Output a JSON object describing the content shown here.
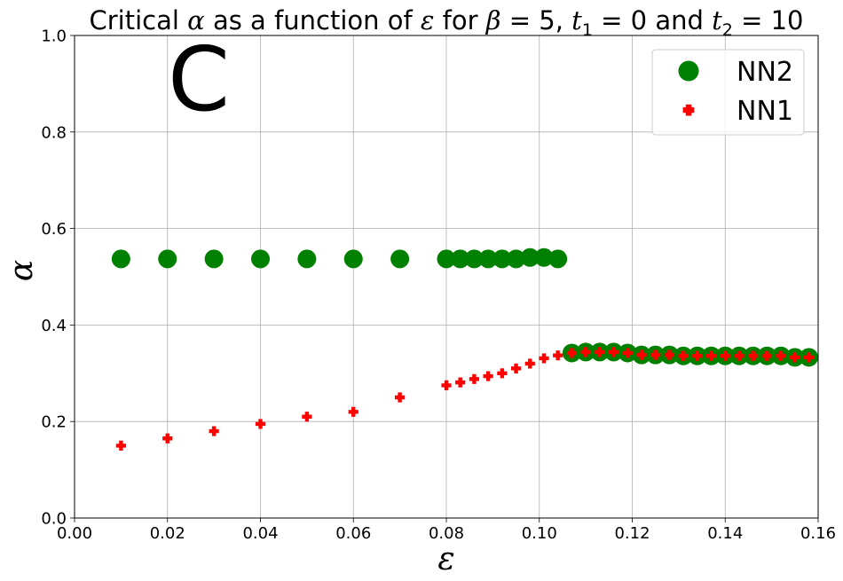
{
  "chart_data": {
    "type": "scatter",
    "title_parts": {
      "p1": "Critical ",
      "alpha": "α",
      "p2": " as a function of ",
      "eps": "ε",
      "p3": " for ",
      "beta": "β",
      "p4": " = 5, ",
      "t1": "t",
      "t1_sub": "1",
      "p5": " = 0 and ",
      "t2": "t",
      "t2_sub": "2",
      "p6": " = 10"
    },
    "xlabel": "ε",
    "ylabel": "α",
    "panel_label": "C",
    "xlim": [
      0,
      0.16
    ],
    "ylim": [
      0,
      1
    ],
    "xticks": [
      "0.00",
      "0.02",
      "0.04",
      "0.06",
      "0.08",
      "0.10",
      "0.12",
      "0.14",
      "0.16"
    ],
    "yticks": [
      "0.0",
      "0.2",
      "0.4",
      "0.6",
      "0.8",
      "1.0"
    ],
    "grid": true,
    "legend_position": "top-right",
    "series": [
      {
        "name": "NN2",
        "marker": "circle",
        "color": "#008000",
        "points": [
          [
            0.01,
            0.537
          ],
          [
            0.02,
            0.537
          ],
          [
            0.03,
            0.537
          ],
          [
            0.04,
            0.537
          ],
          [
            0.05,
            0.537
          ],
          [
            0.06,
            0.537
          ],
          [
            0.07,
            0.537
          ],
          [
            0.08,
            0.537
          ],
          [
            0.083,
            0.537
          ],
          [
            0.086,
            0.537
          ],
          [
            0.089,
            0.537
          ],
          [
            0.092,
            0.537
          ],
          [
            0.095,
            0.537
          ],
          [
            0.098,
            0.54
          ],
          [
            0.101,
            0.54
          ],
          [
            0.104,
            0.537
          ],
          [
            0.107,
            0.342
          ],
          [
            0.11,
            0.344
          ],
          [
            0.113,
            0.344
          ],
          [
            0.116,
            0.344
          ],
          [
            0.119,
            0.342
          ],
          [
            0.122,
            0.338
          ],
          [
            0.125,
            0.338
          ],
          [
            0.128,
            0.338
          ],
          [
            0.131,
            0.336
          ],
          [
            0.134,
            0.336
          ],
          [
            0.137,
            0.336
          ],
          [
            0.14,
            0.336
          ],
          [
            0.143,
            0.336
          ],
          [
            0.146,
            0.336
          ],
          [
            0.149,
            0.336
          ],
          [
            0.152,
            0.336
          ],
          [
            0.155,
            0.333
          ],
          [
            0.158,
            0.333
          ]
        ]
      },
      {
        "name": "NN1",
        "marker": "plus",
        "color": "#ff0000",
        "points": [
          [
            0.01,
            0.15
          ],
          [
            0.02,
            0.165
          ],
          [
            0.03,
            0.18
          ],
          [
            0.04,
            0.195
          ],
          [
            0.05,
            0.21
          ],
          [
            0.06,
            0.22
          ],
          [
            0.07,
            0.25
          ],
          [
            0.08,
            0.275
          ],
          [
            0.083,
            0.281
          ],
          [
            0.086,
            0.288
          ],
          [
            0.089,
            0.294
          ],
          [
            0.092,
            0.3
          ],
          [
            0.095,
            0.31
          ],
          [
            0.098,
            0.32
          ],
          [
            0.101,
            0.331
          ],
          [
            0.104,
            0.337
          ],
          [
            0.107,
            0.342
          ],
          [
            0.11,
            0.344
          ],
          [
            0.113,
            0.344
          ],
          [
            0.116,
            0.344
          ],
          [
            0.119,
            0.342
          ],
          [
            0.122,
            0.338
          ],
          [
            0.125,
            0.338
          ],
          [
            0.128,
            0.338
          ],
          [
            0.131,
            0.336
          ],
          [
            0.134,
            0.336
          ],
          [
            0.137,
            0.336
          ],
          [
            0.14,
            0.336
          ],
          [
            0.143,
            0.336
          ],
          [
            0.146,
            0.336
          ],
          [
            0.149,
            0.336
          ],
          [
            0.152,
            0.336
          ],
          [
            0.155,
            0.333
          ],
          [
            0.158,
            0.333
          ]
        ]
      }
    ]
  }
}
